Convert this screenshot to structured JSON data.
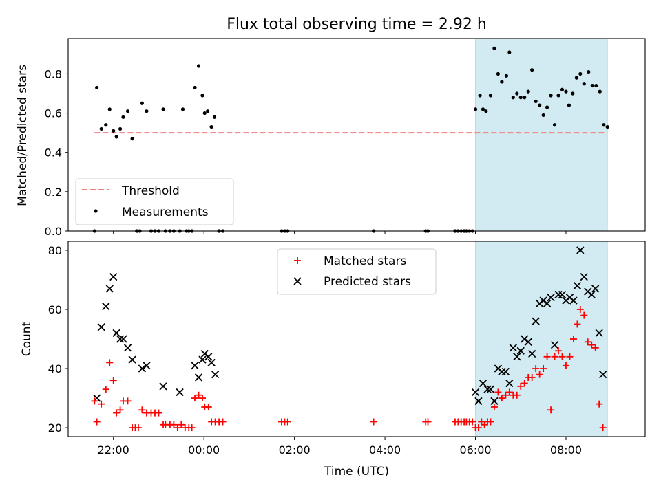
{
  "chart_data": [
    {
      "type": "scatter",
      "title": "Flux total observing time = 2.92 h",
      "ylabel": "Matched/Predicted stars",
      "xlabel": "",
      "xlim": [
        "21:00",
        "09:45"
      ],
      "ylim": [
        0,
        0.98
      ],
      "yticks": [
        "0.0",
        "0.2",
        "0.4",
        "0.6",
        "0.8"
      ],
      "shaded_region": {
        "start": "06:00",
        "end": "08:55",
        "color": "#add8e6"
      },
      "threshold": {
        "name": "Threshold",
        "value": 0.5,
        "start": "21:35",
        "end": "08:55",
        "color": "#f08080"
      },
      "legend": {
        "placement": "lower-left",
        "entries": [
          "Threshold",
          "Measurements"
        ]
      },
      "series": [
        {
          "name": "Measurements",
          "color": "#000000",
          "points": [
            [
              "21:35",
              0.0
            ],
            [
              "21:38",
              0.73
            ],
            [
              "21:44",
              0.52
            ],
            [
              "21:50",
              0.54
            ],
            [
              "21:55",
              0.62
            ],
            [
              "22:00",
              0.51
            ],
            [
              "22:04",
              0.48
            ],
            [
              "22:09",
              0.52
            ],
            [
              "22:13",
              0.58
            ],
            [
              "22:19",
              0.61
            ],
            [
              "22:25",
              0.47
            ],
            [
              "22:31",
              0.0
            ],
            [
              "22:35",
              0.0
            ],
            [
              "22:38",
              0.65
            ],
            [
              "22:44",
              0.61
            ],
            [
              "22:50",
              0.0
            ],
            [
              "22:55",
              0.0
            ],
            [
              "23:00",
              0.0
            ],
            [
              "23:06",
              0.62
            ],
            [
              "23:09",
              0.0
            ],
            [
              "23:15",
              0.0
            ],
            [
              "23:20",
              0.0
            ],
            [
              "23:28",
              0.0
            ],
            [
              "23:32",
              0.62
            ],
            [
              "23:37",
              0.0
            ],
            [
              "23:40",
              0.0
            ],
            [
              "23:44",
              0.0
            ],
            [
              "23:48",
              0.73
            ],
            [
              "23:53",
              0.84
            ],
            [
              "23:58",
              0.69
            ],
            [
              "00:01",
              0.6
            ],
            [
              "00:05",
              0.61
            ],
            [
              "00:10",
              0.53
            ],
            [
              "00:14",
              0.58
            ],
            [
              "00:20",
              0.0
            ],
            [
              "00:25",
              0.0
            ],
            [
              "01:43",
              0.0
            ],
            [
              "01:47",
              0.0
            ],
            [
              "01:51",
              0.0
            ],
            [
              "03:45",
              0.0
            ],
            [
              "04:54",
              0.0
            ],
            [
              "04:57",
              0.0
            ],
            [
              "05:33",
              0.0
            ],
            [
              "05:37",
              0.0
            ],
            [
              "05:41",
              0.0
            ],
            [
              "05:45",
              0.0
            ],
            [
              "05:48",
              0.0
            ],
            [
              "05:52",
              0.0
            ],
            [
              "05:56",
              0.0
            ],
            [
              "06:00",
              0.62
            ],
            [
              "06:06",
              0.69
            ],
            [
              "06:10",
              0.62
            ],
            [
              "06:14",
              0.61
            ],
            [
              "06:20",
              0.69
            ],
            [
              "06:25",
              0.93
            ],
            [
              "06:30",
              0.8
            ],
            [
              "06:35",
              0.76
            ],
            [
              "06:41",
              0.79
            ],
            [
              "06:45",
              0.91
            ],
            [
              "06:50",
              0.68
            ],
            [
              "06:55",
              0.7
            ],
            [
              "07:00",
              0.68
            ],
            [
              "07:05",
              0.68
            ],
            [
              "07:10",
              0.71
            ],
            [
              "07:15",
              0.82
            ],
            [
              "07:20",
              0.66
            ],
            [
              "07:25",
              0.64
            ],
            [
              "07:30",
              0.59
            ],
            [
              "07:35",
              0.63
            ],
            [
              "07:40",
              0.69
            ],
            [
              "07:45",
              0.54
            ],
            [
              "07:50",
              0.69
            ],
            [
              "07:55",
              0.72
            ],
            [
              "08:00",
              0.71
            ],
            [
              "08:04",
              0.64
            ],
            [
              "08:09",
              0.7
            ],
            [
              "08:14",
              0.78
            ],
            [
              "08:19",
              0.8
            ],
            [
              "08:24",
              0.75
            ],
            [
              "08:30",
              0.81
            ],
            [
              "08:35",
              0.74
            ],
            [
              "08:40",
              0.74
            ],
            [
              "08:45",
              0.71
            ],
            [
              "08:50",
              0.54
            ],
            [
              "08:55",
              0.53
            ]
          ]
        }
      ]
    },
    {
      "type": "scatter",
      "title": "",
      "xlabel": "Time (UTC)",
      "ylabel": "Count",
      "xlim": [
        "21:00",
        "09:45"
      ],
      "ylim": [
        17,
        83
      ],
      "xticks": [
        "22:00",
        "00:00",
        "02:00",
        "04:00",
        "06:00",
        "08:00"
      ],
      "yticks": [
        "20",
        "40",
        "60",
        "80"
      ],
      "shaded_region": {
        "start": "06:00",
        "end": "08:55",
        "color": "#add8e6"
      },
      "legend": {
        "placement": "upper-center",
        "entries": [
          "Matched stars",
          "Predicted stars"
        ]
      },
      "series": [
        {
          "name": "Matched stars",
          "marker": "+",
          "color": "#ff0000",
          "points": [
            [
              "21:35",
              29
            ],
            [
              "21:38",
              22
            ],
            [
              "21:44",
              28
            ],
            [
              "21:50",
              33
            ],
            [
              "21:55",
              42
            ],
            [
              "22:00",
              36
            ],
            [
              "22:04",
              25
            ],
            [
              "22:09",
              26
            ],
            [
              "22:13",
              29
            ],
            [
              "22:19",
              29
            ],
            [
              "22:25",
              20
            ],
            [
              "22:29",
              20
            ],
            [
              "22:33",
              20
            ],
            [
              "22:38",
              26
            ],
            [
              "22:44",
              25
            ],
            [
              "22:50",
              25
            ],
            [
              "22:55",
              25
            ],
            [
              "23:00",
              25
            ],
            [
              "23:06",
              21
            ],
            [
              "23:09",
              21
            ],
            [
              "23:15",
              21
            ],
            [
              "23:20",
              21
            ],
            [
              "23:25",
              20
            ],
            [
              "23:30",
              21
            ],
            [
              "23:35",
              20
            ],
            [
              "23:40",
              20
            ],
            [
              "23:44",
              20
            ],
            [
              "23:48",
              30
            ],
            [
              "23:53",
              31
            ],
            [
              "23:58",
              30
            ],
            [
              "00:01",
              27
            ],
            [
              "00:06",
              27
            ],
            [
              "00:10",
              22
            ],
            [
              "00:15",
              22
            ],
            [
              "00:20",
              22
            ],
            [
              "00:25",
              22
            ],
            [
              "01:43",
              22
            ],
            [
              "01:47",
              22
            ],
            [
              "01:51",
              22
            ],
            [
              "03:45",
              22
            ],
            [
              "04:54",
              22
            ],
            [
              "04:57",
              22
            ],
            [
              "05:33",
              22
            ],
            [
              "05:37",
              22
            ],
            [
              "05:41",
              22
            ],
            [
              "05:45",
              22
            ],
            [
              "05:48",
              22
            ],
            [
              "05:52",
              22
            ],
            [
              "05:56",
              22
            ],
            [
              "06:00",
              20
            ],
            [
              "06:04",
              20
            ],
            [
              "06:08",
              22
            ],
            [
              "06:12",
              21
            ],
            [
              "06:16",
              22
            ],
            [
              "06:20",
              22
            ],
            [
              "06:25",
              27
            ],
            [
              "06:30",
              32
            ],
            [
              "06:35",
              30
            ],
            [
              "06:40",
              31
            ],
            [
              "06:45",
              32
            ],
            [
              "06:50",
              31
            ],
            [
              "06:55",
              31
            ],
            [
              "07:00",
              34
            ],
            [
              "07:05",
              35
            ],
            [
              "07:10",
              37
            ],
            [
              "07:15",
              37
            ],
            [
              "07:20",
              40
            ],
            [
              "07:25",
              38
            ],
            [
              "07:30",
              40
            ],
            [
              "07:35",
              44
            ],
            [
              "07:40",
              26
            ],
            [
              "07:45",
              44
            ],
            [
              "07:50",
              46
            ],
            [
              "07:55",
              44
            ],
            [
              "08:00",
              41
            ],
            [
              "08:05",
              44
            ],
            [
              "08:10",
              50
            ],
            [
              "08:15",
              55
            ],
            [
              "08:19",
              60
            ],
            [
              "08:24",
              58
            ],
            [
              "08:29",
              49
            ],
            [
              "08:34",
              48
            ],
            [
              "08:39",
              47
            ],
            [
              "08:44",
              28
            ],
            [
              "08:49",
              20
            ]
          ]
        },
        {
          "name": "Predicted stars",
          "marker": "x",
          "color": "#000000",
          "points": [
            [
              "21:38",
              30
            ],
            [
              "21:44",
              54
            ],
            [
              "21:50",
              61
            ],
            [
              "21:55",
              67
            ],
            [
              "22:00",
              71
            ],
            [
              "22:04",
              52
            ],
            [
              "22:09",
              50
            ],
            [
              "22:13",
              50
            ],
            [
              "22:19",
              47
            ],
            [
              "22:25",
              43
            ],
            [
              "22:38",
              40
            ],
            [
              "22:44",
              41
            ],
            [
              "23:06",
              34
            ],
            [
              "23:28",
              32
            ],
            [
              "23:48",
              41
            ],
            [
              "23:53",
              37
            ],
            [
              "23:58",
              43
            ],
            [
              "00:01",
              45
            ],
            [
              "00:06",
              44
            ],
            [
              "00:10",
              42
            ],
            [
              "00:15",
              38
            ],
            [
              "06:00",
              32
            ],
            [
              "06:04",
              29
            ],
            [
              "06:10",
              35
            ],
            [
              "06:16",
              33
            ],
            [
              "06:20",
              33
            ],
            [
              "06:25",
              29
            ],
            [
              "06:30",
              40
            ],
            [
              "06:35",
              39
            ],
            [
              "06:40",
              39
            ],
            [
              "06:45",
              35
            ],
            [
              "06:50",
              47
            ],
            [
              "06:55",
              44
            ],
            [
              "07:00",
              46
            ],
            [
              "07:05",
              50
            ],
            [
              "07:10",
              49
            ],
            [
              "07:15",
              45
            ],
            [
              "07:20",
              56
            ],
            [
              "07:25",
              62
            ],
            [
              "07:30",
              63
            ],
            [
              "07:35",
              62
            ],
            [
              "07:40",
              64
            ],
            [
              "07:45",
              48
            ],
            [
              "07:50",
              65
            ],
            [
              "07:55",
              65
            ],
            [
              "08:00",
              63
            ],
            [
              "08:05",
              64
            ],
            [
              "08:10",
              63
            ],
            [
              "08:15",
              68
            ],
            [
              "08:19",
              80
            ],
            [
              "08:24",
              71
            ],
            [
              "08:29",
              66
            ],
            [
              "08:34",
              65
            ],
            [
              "08:39",
              67
            ],
            [
              "08:44",
              52
            ],
            [
              "08:49",
              38
            ]
          ]
        }
      ]
    }
  ]
}
